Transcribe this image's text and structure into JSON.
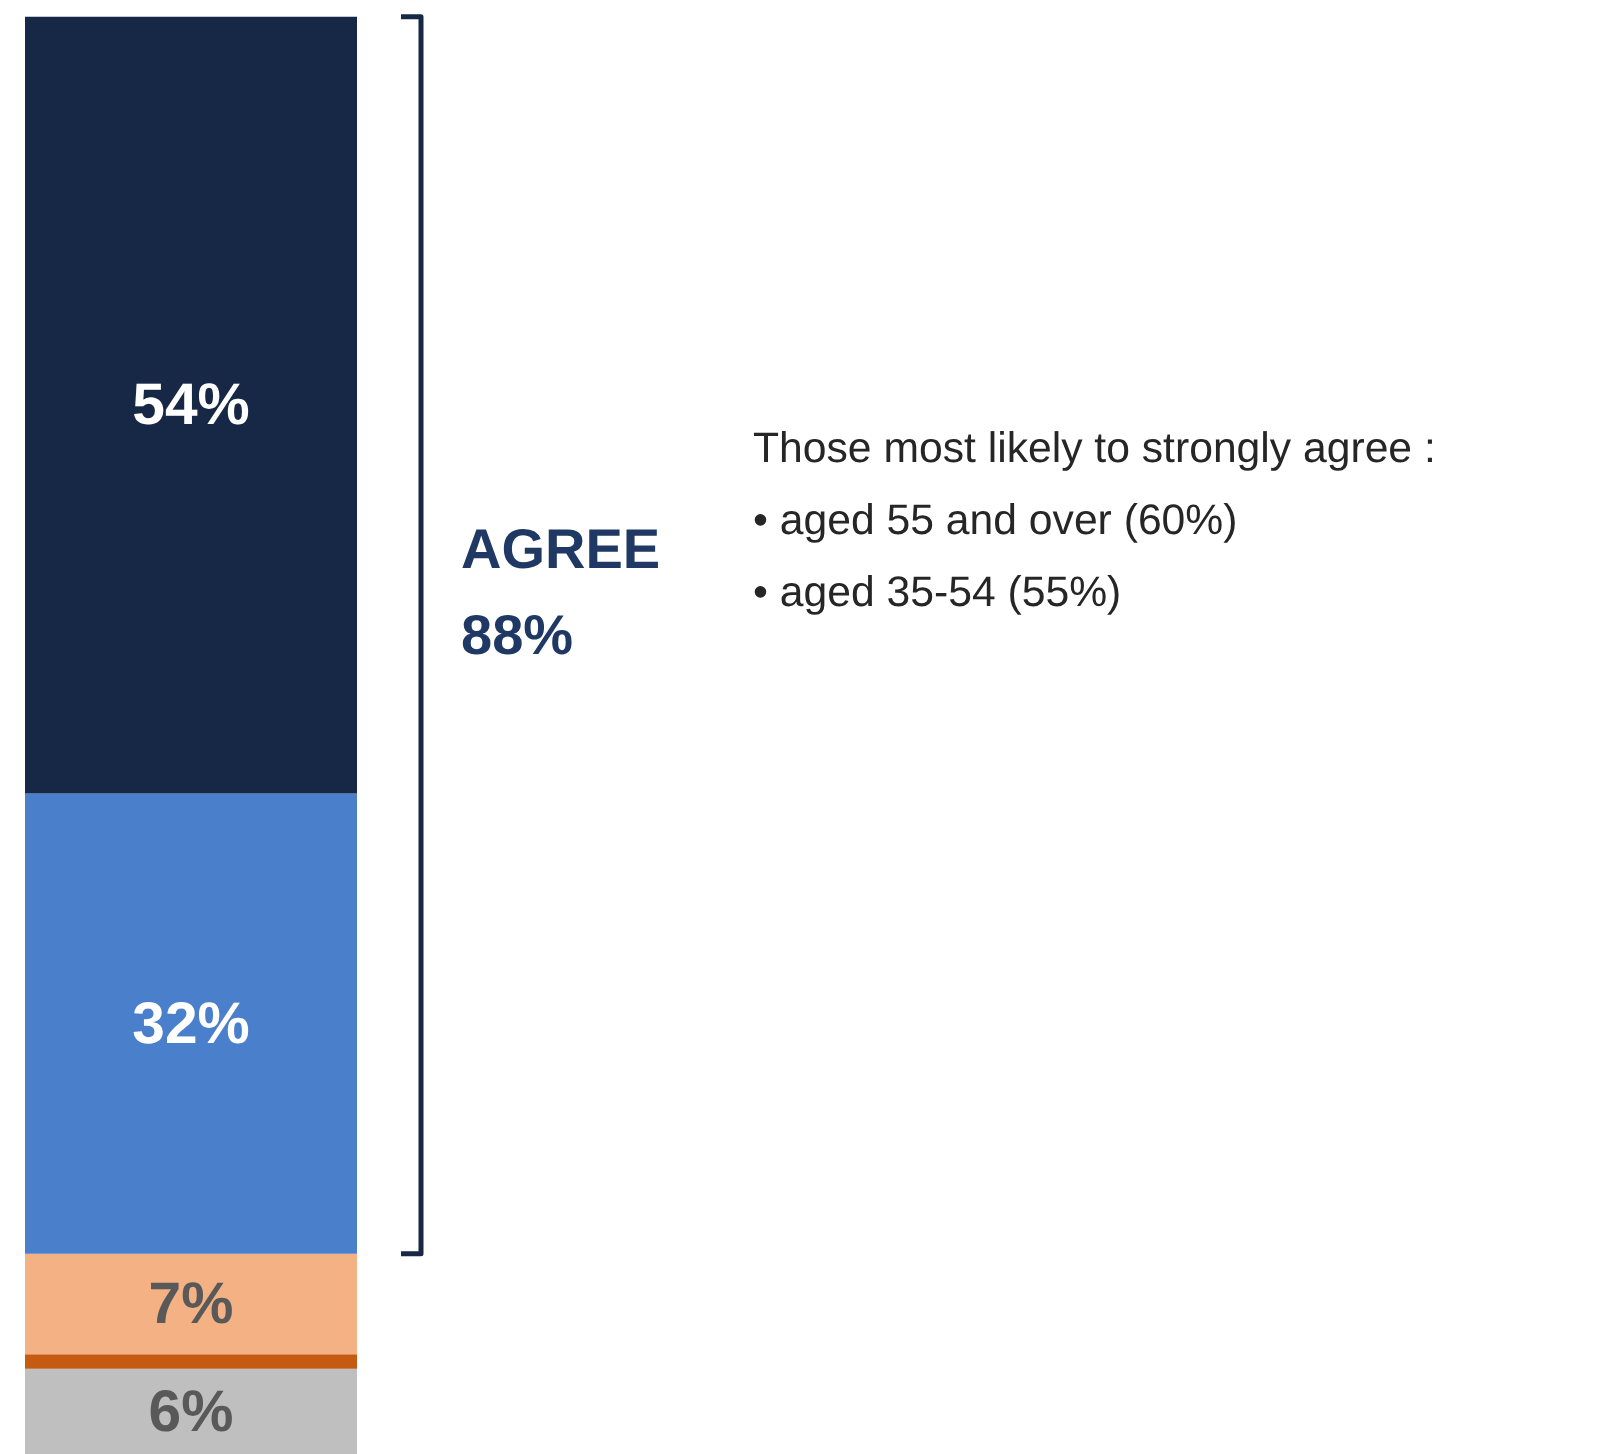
{
  "chart_data": {
    "type": "bar",
    "stacked": true,
    "categories": [
      null
    ],
    "series": [
      {
        "color": "#bfbfbf",
        "values": [
          6
        ],
        "value_labels": [
          "6%"
        ]
      },
      {
        "color": "#c55a11",
        "values": [
          1
        ],
        "value_labels": [
          null
        ]
      },
      {
        "color": "#f4b183",
        "values": [
          7
        ],
        "value_labels": [
          "7%"
        ]
      },
      {
        "color": "#4a7fcb",
        "values": [
          32
        ],
        "value_labels": [
          "32%"
        ]
      },
      {
        "color": "#172746",
        "values": [
          54
        ],
        "value_labels": [
          "54%"
        ]
      }
    ],
    "annotations": [
      "AGREE\n88%",
      "Those most likely to strongly agree :",
      "•       aged 55 and over (60%)",
      "•       aged 35-54 (55%)"
    ]
  }
}
